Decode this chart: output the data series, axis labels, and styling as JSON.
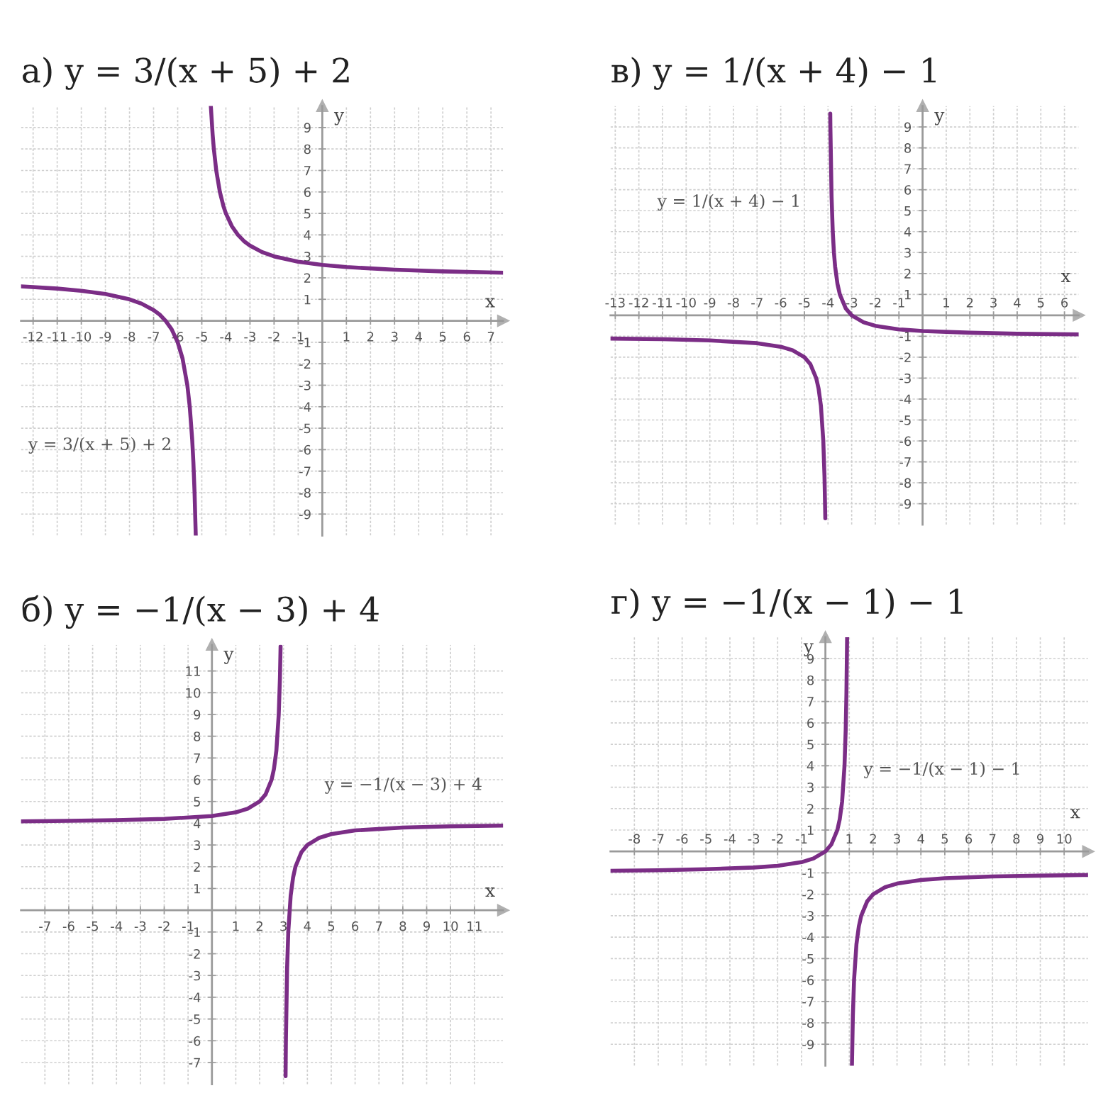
{
  "chart_data": [
    {
      "type": "line",
      "title": "а) y = 3/(x + 5) + 2",
      "xlabel": "x",
      "ylabel": "y",
      "series": [
        {
          "color": "#7b2d86",
          "x": [
            -12.5,
            -11,
            -10,
            -9,
            -8,
            -7.5,
            -7,
            -6.75,
            -6.5,
            -6.25,
            -6,
            -5.8,
            -5.6,
            -5.5,
            -5.4,
            -5.35,
            -5.3,
            -5.25,
            null,
            -4.625,
            -4.55,
            -4.5,
            -4.4,
            -4.25,
            -4.1,
            -4,
            -3.75,
            -3.5,
            -3.25,
            -3,
            -2.5,
            -2,
            -1,
            0,
            1,
            3,
            5,
            7.5
          ],
          "values": [
            1.6,
            1.5,
            1.4,
            1.25,
            1,
            0.8,
            0.5,
            0.29,
            0,
            -0.4,
            -1,
            -1.75,
            -3,
            -4,
            -5.5,
            -6.57,
            -8,
            -10,
            null,
            10,
            8.67,
            8,
            7,
            6,
            5.33,
            5,
            4.4,
            4,
            3.71,
            3.5,
            3.2,
            3,
            2.75,
            2.6,
            2.5,
            2.38,
            2.3,
            2.24
          ]
        }
      ],
      "xlim": [
        -12.5,
        7.5
      ],
      "ylim": [
        -10,
        10
      ],
      "xticks": [
        -12,
        -11,
        -10,
        -9,
        -8,
        -7,
        -6,
        -5,
        -4,
        -3,
        -2,
        -1,
        1,
        2,
        3,
        4,
        5,
        6,
        7
      ],
      "yticks": [
        -9,
        -8,
        -7,
        -6,
        -5,
        -4,
        -3,
        -2,
        -1,
        1,
        2,
        3,
        4,
        5,
        6,
        7,
        8,
        9
      ],
      "grid": true,
      "annotations": [
        "y = 3/(x + 5) + 2"
      ]
    },
    {
      "type": "line",
      "title": "в) y = 1/(x + 4) − 1",
      "xlabel": "x",
      "ylabel": "y",
      "series": [
        {
          "color": "#7b2d86",
          "x": [
            -13.2,
            -11,
            -9,
            -7,
            -6,
            -5.5,
            -5,
            -4.75,
            -4.5,
            -4.4,
            -4.3,
            -4.2,
            -4.15,
            -4.115,
            null,
            -3.906,
            -3.9,
            -3.85,
            -3.8,
            -3.75,
            -3.7,
            -3.6,
            -3.5,
            -3.25,
            -3,
            -2.5,
            -2,
            -1,
            0,
            2,
            4,
            6.6
          ],
          "values": [
            -1.11,
            -1.14,
            -1.2,
            -1.33,
            -1.5,
            -1.67,
            -2,
            -2.33,
            -3,
            -3.5,
            -4.33,
            -6,
            -7.67,
            -9.7,
            null,
            9.64,
            9,
            5.67,
            4,
            3,
            2.33,
            1.5,
            1,
            0.33,
            0,
            -0.33,
            -0.5,
            -0.67,
            -0.75,
            -0.83,
            -0.88,
            -0.91
          ]
        }
      ],
      "xlim": [
        -13.2,
        6.6
      ],
      "ylim": [
        -10,
        10
      ],
      "xticks": [
        -13,
        -12,
        -11,
        -10,
        -9,
        -8,
        -7,
        -6,
        -5,
        -4,
        -3,
        -2,
        -1,
        1,
        2,
        3,
        4,
        5,
        6
      ],
      "yticks": [
        -9,
        -8,
        -7,
        -6,
        -5,
        -4,
        -3,
        -2,
        -1,
        1,
        2,
        3,
        4,
        5,
        6,
        7,
        8,
        9
      ],
      "grid": true,
      "annotations": [
        "y = 1/(x + 4) − 1"
      ]
    },
    {
      "type": "line",
      "title": "б) y = −1/(x − 3) + 4",
      "xlabel": "x",
      "ylabel": "y",
      "series": [
        {
          "color": "#7b2d86",
          "x": [
            -8,
            -6,
            -4,
            -2,
            0,
            1,
            1.5,
            2,
            2.25,
            2.5,
            2.6,
            2.7,
            2.8,
            2.85,
            2.877,
            null,
            3.086,
            3.1,
            3.15,
            3.2,
            3.3,
            3.4,
            3.5,
            3.75,
            4,
            4.5,
            5,
            6,
            8,
            10,
            12.2
          ],
          "values": [
            4.09,
            4.11,
            4.14,
            4.2,
            4.33,
            4.5,
            4.67,
            5,
            5.33,
            6,
            6.5,
            7.33,
            9,
            10.67,
            12.13,
            null,
            -7.63,
            -6,
            -2.67,
            -1,
            0.67,
            1.5,
            2,
            2.67,
            3,
            3.33,
            3.5,
            3.67,
            3.8,
            3.86,
            3.89
          ]
        }
      ],
      "xlim": [
        -8,
        12.2
      ],
      "ylim": [
        -8,
        12.2
      ],
      "xticks": [
        -7,
        -6,
        -5,
        -4,
        -3,
        -2,
        -1,
        1,
        2,
        3,
        4,
        5,
        6,
        7,
        8,
        9,
        10,
        11
      ],
      "yticks": [
        -7,
        -6,
        -5,
        -4,
        -3,
        -2,
        -1,
        1,
        2,
        3,
        4,
        5,
        6,
        7,
        8,
        9,
        10,
        11
      ],
      "grid": true,
      "annotations": [
        "y = −1/(x − 3) + 4"
      ]
    },
    {
      "type": "line",
      "title": "г) y = −1/(x − 1) − 1",
      "xlabel": "x",
      "ylabel": "y",
      "series": [
        {
          "color": "#7b2d86",
          "x": [
            -9,
            -7,
            -5,
            -3,
            -2,
            -1,
            -0.5,
            0,
            0.25,
            0.5,
            0.6,
            0.7,
            0.8,
            0.85,
            0.88,
            0.909,
            null,
            1.111,
            1.15,
            1.2,
            1.3,
            1.4,
            1.5,
            1.75,
            2,
            2.5,
            3,
            4,
            5,
            7,
            9,
            11
          ],
          "values": [
            -0.9,
            -0.88,
            -0.83,
            -0.75,
            -0.67,
            -0.5,
            -0.33,
            0,
            0.33,
            1,
            1.5,
            2.33,
            4,
            5.67,
            7.33,
            10,
            null,
            -10,
            -7.67,
            -6,
            -4.33,
            -3.5,
            -3,
            -2.33,
            -2,
            -1.67,
            -1.5,
            -1.33,
            -1.25,
            -1.17,
            -1.13,
            -1.1
          ]
        }
      ],
      "xlim": [
        -9,
        11
      ],
      "ylim": [
        -10,
        10
      ],
      "xticks": [
        -8,
        -7,
        -6,
        -5,
        -4,
        -3,
        -2,
        -1,
        1,
        2,
        3,
        4,
        5,
        6,
        7,
        8,
        9,
        10
      ],
      "yticks": [
        -9,
        -8,
        -7,
        -6,
        -5,
        -4,
        -3,
        -2,
        -1,
        1,
        2,
        3,
        4,
        5,
        6,
        7,
        8,
        9
      ],
      "grid": true,
      "annotations": [
        "y = −1/(x − 1) − 1"
      ]
    }
  ]
}
